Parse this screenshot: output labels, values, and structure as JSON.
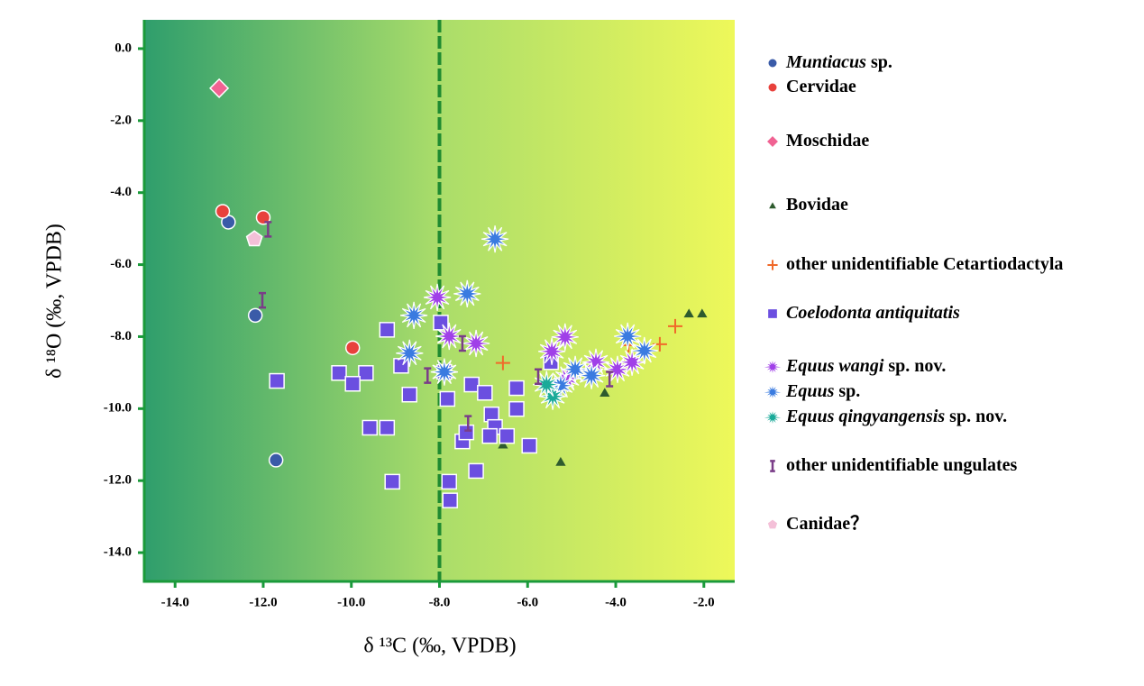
{
  "chart_data": {
    "type": "scatter",
    "x_label": "δ ¹³C (‰, VPDB)",
    "y_label": "δ ¹⁸O (‰, VPDB)",
    "xlim": [
      -14.7,
      -1.3
    ],
    "ylim": [
      -14.8,
      0.8
    ],
    "xticks": [
      {
        "value": -14,
        "label": "-14.0"
      },
      {
        "value": -12,
        "label": "-12.0"
      },
      {
        "value": -10,
        "label": "-10.0"
      },
      {
        "value": -8,
        "label": "-8.0"
      },
      {
        "value": -6,
        "label": "-6.0"
      },
      {
        "value": -4,
        "label": "-4.0"
      },
      {
        "value": -2,
        "label": "-2.0"
      }
    ],
    "yticks": [
      {
        "value": 0,
        "label": "0.0"
      },
      {
        "value": -2,
        "label": "-2.0"
      },
      {
        "value": -4,
        "label": "-4.0"
      },
      {
        "value": -6,
        "label": "-6.0"
      },
      {
        "value": -8,
        "label": "-8.0"
      },
      {
        "value": -10,
        "label": "-10.0"
      },
      {
        "value": -12,
        "label": "-12.0"
      },
      {
        "value": -14,
        "label": "-14.0"
      }
    ],
    "vline": -8,
    "series": [
      {
        "name": "Muntiacus sp.",
        "italic_words": 1,
        "color": "#3a5ba8",
        "marker": "circle",
        "x": [
          -12.79,
          -12.18,
          -11.71
        ],
        "y": [
          -4.82,
          -7.41,
          -11.43
        ]
      },
      {
        "name": "Cervidae",
        "italic_words": 0,
        "color": "#e8413c",
        "marker": "circle",
        "x": [
          -12.92,
          -12.0,
          -9.97
        ],
        "y": [
          -4.52,
          -4.69,
          -8.31
        ]
      },
      {
        "name": "Moschidae",
        "italic_words": 0,
        "color": "#f06292",
        "marker": "diamond",
        "x": [
          -13.0
        ],
        "y": [
          -1.1
        ]
      },
      {
        "name": "Bovidae",
        "italic_words": 0,
        "color": "#2e5b2e",
        "marker": "triangle",
        "x": [
          -2.34,
          -2.04,
          -4.25,
          -6.56,
          -5.25
        ],
        "y": [
          -7.36,
          -7.36,
          -9.56,
          -11.0,
          -11.48
        ]
      },
      {
        "name": "other unidentifiable Cetartiodactyla",
        "italic_words": 0,
        "color": "#f06a2a",
        "marker": "plus",
        "x": [
          -6.56,
          -2.65,
          -3.0,
          -3.71
        ],
        "y": [
          -8.73,
          -7.71,
          -8.21,
          -8.24
        ]
      },
      {
        "name": "Coelodonta antiquitatis",
        "italic_words": 2,
        "color": "#6b4fe0",
        "marker": "square",
        "x": [
          -11.69,
          -10.28,
          -9.67,
          -9.58,
          -9.19,
          -9.07,
          -9.19,
          -9.97,
          -8.87,
          -8.68,
          -7.97,
          -7.89,
          -7.82,
          -7.78,
          -7.76,
          -7.27,
          -7.48,
          -6.97,
          -6.82,
          -6.74,
          -6.86,
          -6.47,
          -7.17,
          -6.25,
          -6.25,
          -5.96,
          -7.39,
          -5.47
        ],
        "y": [
          -9.23,
          -9.01,
          -9.01,
          -10.53,
          -10.53,
          -12.03,
          -7.81,
          -9.31,
          -8.81,
          -9.61,
          -7.61,
          -8.98,
          -9.73,
          -12.03,
          -12.55,
          -9.33,
          -10.91,
          -9.56,
          -10.16,
          -10.51,
          -10.76,
          -10.76,
          -11.73,
          -9.43,
          -10.01,
          -11.03,
          -10.66,
          -8.71
        ]
      },
      {
        "name": "Equus wangi sp. nov.",
        "italic_words": 2,
        "color": "#a040e8",
        "marker": "star",
        "x": [
          -8.05,
          -7.78,
          -7.17,
          -5.45,
          -5.15,
          -4.45,
          -3.96,
          -3.63,
          -5.1
        ],
        "y": [
          -6.91,
          -7.99,
          -8.19,
          -8.41,
          -8.01,
          -8.71,
          -8.91,
          -8.71,
          -9.16
        ]
      },
      {
        "name": "Equus sp.",
        "italic_words": 1,
        "color": "#3a7be0",
        "marker": "star",
        "x": [
          -6.74,
          -7.37,
          -8.58,
          -8.68,
          -7.89,
          -4.92,
          -5.25,
          -4.55,
          -3.73,
          -3.35
        ],
        "y": [
          -5.29,
          -6.81,
          -7.41,
          -8.46,
          -8.98,
          -8.91,
          -9.36,
          -9.08,
          -7.99,
          -8.39
        ]
      },
      {
        "name": "Equus qingyangensis sp. nov.",
        "italic_words": 2,
        "color": "#1aaa99",
        "marker": "star",
        "x": [
          -5.43,
          -5.57
        ],
        "y": [
          -9.66,
          -9.33
        ]
      },
      {
        "name": "other unidentifiable ungulates",
        "italic_words": 0,
        "color": "#7a3d88",
        "marker": "ibar",
        "x": [
          -11.89,
          -12.02,
          -8.27,
          -7.48,
          -7.35,
          -5.76,
          -4.14
        ],
        "y": [
          -5.02,
          -6.99,
          -9.08,
          -8.19,
          -10.41,
          -9.11,
          -9.18
        ]
      },
      {
        "name": "Canidae？",
        "italic_words": 0,
        "color": "#f4c0d8",
        "marker": "pentagon",
        "x": [
          -12.2
        ],
        "y": [
          -5.29
        ]
      }
    ]
  }
}
